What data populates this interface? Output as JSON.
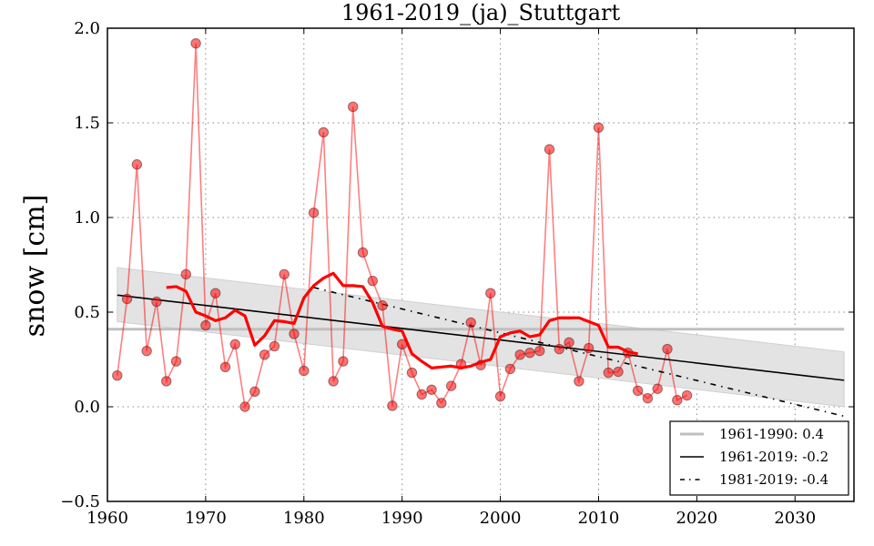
{
  "chart_data": {
    "type": "line",
    "title": "1961-2019_(ja)_Stuttgart",
    "xlabel": "",
    "ylabel": "snow [cm]",
    "xlim": [
      1960,
      2036
    ],
    "ylim": [
      -0.5,
      2.0
    ],
    "grid": true,
    "xticks": [
      1960,
      1970,
      1980,
      1990,
      2000,
      2010,
      2020,
      2030
    ],
    "xtick_labels": [
      "1960",
      "1970",
      "1980",
      "1990",
      "2000",
      "2010",
      "2020",
      "2030"
    ],
    "yticks": [
      -0.5,
      0.0,
      0.5,
      1.0,
      1.5,
      2.0
    ],
    "ytick_labels": [
      "−0.5",
      "0.0",
      "0.5",
      "1.0",
      "1.5",
      "2.0"
    ],
    "series": [
      {
        "name": "annual snow",
        "kind": "line-markers",
        "color": "#ff0000",
        "x": [
          1961,
          1962,
          1963,
          1964,
          1965,
          1966,
          1967,
          1968,
          1969,
          1970,
          1971,
          1972,
          1973,
          1974,
          1975,
          1976,
          1977,
          1978,
          1979,
          1980,
          1981,
          1982,
          1983,
          1984,
          1985,
          1986,
          1987,
          1988,
          1989,
          1990,
          1991,
          1992,
          1993,
          1994,
          1995,
          1996,
          1997,
          1998,
          1999,
          2000,
          2001,
          2002,
          2003,
          2004,
          2005,
          2006,
          2007,
          2008,
          2009,
          2010,
          2011,
          2012,
          2013,
          2014,
          2015,
          2016,
          2017,
          2018,
          2019
        ],
        "values": [
          0.165,
          0.57,
          1.28,
          0.295,
          0.555,
          0.135,
          0.24,
          0.7,
          1.92,
          0.43,
          0.6,
          0.21,
          0.33,
          0.0,
          0.08,
          0.275,
          0.32,
          0.7,
          0.385,
          0.19,
          1.025,
          1.45,
          0.135,
          0.24,
          1.585,
          0.815,
          0.665,
          0.535,
          0.005,
          0.33,
          0.18,
          0.065,
          0.09,
          0.02,
          0.11,
          0.225,
          0.445,
          0.22,
          0.6,
          0.055,
          0.2,
          0.275,
          0.285,
          0.295,
          1.36,
          0.305,
          0.34,
          0.135,
          0.31,
          1.475,
          0.18,
          0.185,
          0.285,
          0.085,
          0.045,
          0.095,
          0.305,
          0.035,
          0.06
        ]
      },
      {
        "name": "moving average",
        "kind": "line",
        "color": "#ff0000",
        "x": [
          1966,
          1967,
          1968,
          1969,
          1970,
          1971,
          1972,
          1973,
          1974,
          1975,
          1976,
          1977,
          1978,
          1979,
          1980,
          1981,
          1982,
          1983,
          1984,
          1985,
          1986,
          1987,
          1988,
          1989,
          1990,
          1991,
          1992,
          1993,
          1994,
          1995,
          1996,
          1997,
          1998,
          1999,
          2000,
          2001,
          2002,
          2003,
          2004,
          2005,
          2006,
          2007,
          2008,
          2009,
          2010,
          2011,
          2012,
          2013,
          2014
        ],
        "values": [
          0.63,
          0.635,
          0.61,
          0.5,
          0.48,
          0.455,
          0.47,
          0.51,
          0.48,
          0.325,
          0.375,
          0.455,
          0.45,
          0.44,
          0.575,
          0.64,
          0.68,
          0.705,
          0.64,
          0.64,
          0.635,
          0.55,
          0.425,
          0.41,
          0.4,
          0.28,
          0.24,
          0.205,
          0.21,
          0.215,
          0.205,
          0.215,
          0.235,
          0.25,
          0.37,
          0.39,
          0.4,
          0.37,
          0.38,
          0.455,
          0.47,
          0.47,
          0.47,
          0.45,
          0.43,
          0.315,
          0.315,
          0.29,
          0.28
        ]
      },
      {
        "name": "1961-1990: 0.4",
        "kind": "hline",
        "color": "#bfbfbf",
        "x": [
          1960,
          2035
        ],
        "values": [
          0.41,
          0.41
        ]
      },
      {
        "name": "1961-2019: -0.2",
        "kind": "trend",
        "color": "#000000",
        "x": [
          1961,
          2035
        ],
        "values": [
          0.59,
          0.14
        ]
      },
      {
        "name": "1981-2019: -0.4",
        "kind": "trend-dashdot",
        "color": "#000000",
        "x": [
          1981,
          2035
        ],
        "values": [
          0.63,
          -0.05
        ]
      },
      {
        "name": "confidence band",
        "kind": "band",
        "color": "#e3e3e3",
        "x": [
          1961,
          2035
        ],
        "upper": [
          0.735,
          0.29
        ],
        "lower": [
          0.45,
          0.0
        ]
      }
    ],
    "legend": {
      "placement": "lower-right",
      "entries": [
        {
          "label": "1961-1990: 0.4",
          "style": "gray-solid"
        },
        {
          "label": "1961-2019: -0.2",
          "style": "black-solid"
        },
        {
          "label": "1981-2019: -0.4",
          "style": "black-dashdot"
        }
      ]
    }
  }
}
